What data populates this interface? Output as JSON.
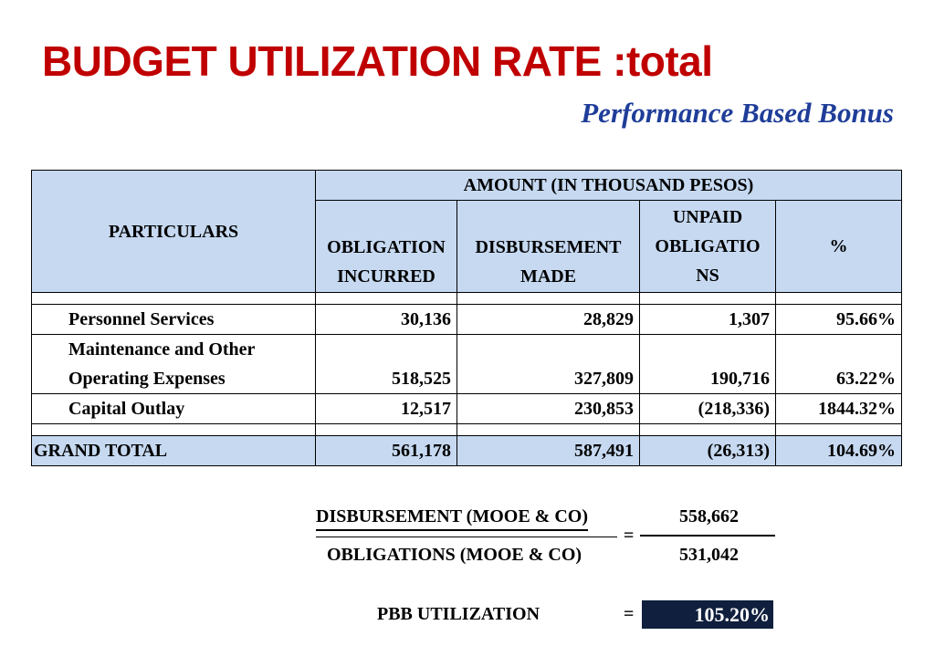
{
  "title": "BUDGET UTILIZATION RATE :total",
  "subtitle": "Performance Based Bonus",
  "table": {
    "particulars_header": "PARTICULARS",
    "amount_header": "AMOUNT (IN THOUSAND PESOS)",
    "col_obligation_1": "OBLIGATION",
    "col_obligation_2": "INCURRED",
    "col_disbursement_1": "DISBURSEMENT",
    "col_disbursement_2": "MADE",
    "col_unpaid_1": "UNPAID",
    "col_unpaid_2": "OBLIGATIO",
    "col_unpaid_3": "NS",
    "col_percent": "%",
    "rows": [
      {
        "label": "Personnel Services",
        "obligation": "30,136",
        "disbursement": "28,829",
        "unpaid": "1,307",
        "percent": "95.66%"
      },
      {
        "label_1": "Maintenance and Other",
        "label_2": "Operating Expenses",
        "obligation": "518,525",
        "disbursement": "327,809",
        "unpaid": "190,716",
        "percent": "63.22%"
      },
      {
        "label": "Capital Outlay",
        "obligation": "12,517",
        "disbursement": "230,853",
        "unpaid": "(218,336)",
        "percent": "1844.32%"
      }
    ],
    "total": {
      "label": "GRAND TOTAL",
      "obligation": "561,178",
      "disbursement": "587,491",
      "unpaid": "(26,313)",
      "percent": "104.69%"
    }
  },
  "formula": {
    "numerator_label": "DISBURSEMENT (MOOE & CO)",
    "denominator_label": "OBLIGATIONS (MOOE & CO)",
    "equals": "=",
    "numerator_value": "558,662",
    "denominator_value": "531,042",
    "result_label": "PBB UTILIZATION",
    "result_equals": "=",
    "result_value": "105.20%"
  }
}
